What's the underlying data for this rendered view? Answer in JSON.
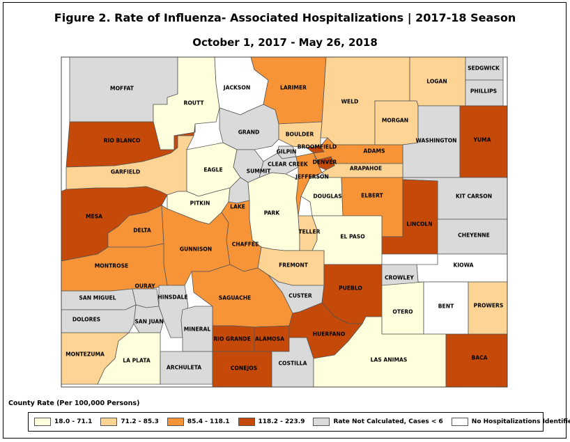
{
  "title": "Figure 2. Rate of Influenza- Associated Hospitalizations | 2017-18 Season",
  "subtitle": "October 1, 2017 - May 26, 2018",
  "colors": {
    "c1": "#ffffdd",
    "c2": "#fed495",
    "c3": "#f89438",
    "c4": "#c54a0a",
    "nc": "#dadada",
    "none": "#ffffff"
  },
  "legend": {
    "title": "County Rate (Per 100,000 Persons)",
    "items": [
      {
        "cls": "c1",
        "label": "18.0 - 71.1"
      },
      {
        "cls": "c2",
        "label": "71.2 - 85.3"
      },
      {
        "cls": "c3",
        "label": "85.4 - 118.1"
      },
      {
        "cls": "c4",
        "label": "118.2 - 223.9"
      },
      {
        "cls": "nc",
        "label": "Rate Not Calculated, Cases < 6"
      },
      {
        "cls": "none",
        "label": "No Hospitalizations Identified"
      }
    ]
  },
  "counties": [
    {
      "name": "MOFFAT",
      "cls": "nc"
    },
    {
      "name": "ROUTT",
      "cls": "c1"
    },
    {
      "name": "JACKSON",
      "cls": "none"
    },
    {
      "name": "LARIMER",
      "cls": "c3"
    },
    {
      "name": "WELD",
      "cls": "c2"
    },
    {
      "name": "LOGAN",
      "cls": "c2"
    },
    {
      "name": "SEDGWICK",
      "cls": "nc"
    },
    {
      "name": "PHILLIPS",
      "cls": "nc"
    },
    {
      "name": "RIO BLANCO",
      "cls": "c4"
    },
    {
      "name": "GRAND",
      "cls": "nc"
    },
    {
      "name": "BOULDER",
      "cls": "c2"
    },
    {
      "name": "MORGAN",
      "cls": "c2"
    },
    {
      "name": "WASHINGTON",
      "cls": "nc"
    },
    {
      "name": "YUMA",
      "cls": "c4"
    },
    {
      "name": "GARFIELD",
      "cls": "c2"
    },
    {
      "name": "EAGLE",
      "cls": "c1"
    },
    {
      "name": "SUMMIT",
      "cls": "nc"
    },
    {
      "name": "GILPIN",
      "cls": "nc"
    },
    {
      "name": "CLEAR CREEK",
      "cls": "nc"
    },
    {
      "name": "BROOMFIELD",
      "cls": "c4"
    },
    {
      "name": "DENVER",
      "cls": "c4"
    },
    {
      "name": "ADAMS",
      "cls": "c3"
    },
    {
      "name": "ARAPAHOE",
      "cls": "c2"
    },
    {
      "name": "JEFFERSON",
      "cls": "c3"
    },
    {
      "name": "MESA",
      "cls": "c4"
    },
    {
      "name": "PITKIN",
      "cls": "c1"
    },
    {
      "name": "LAKE",
      "cls": "nc"
    },
    {
      "name": "PARK",
      "cls": "c1"
    },
    {
      "name": "DOUGLAS",
      "cls": "c1"
    },
    {
      "name": "ELBERT",
      "cls": "c3"
    },
    {
      "name": "KIT CARSON",
      "cls": "nc"
    },
    {
      "name": "LINCOLN",
      "cls": "c4"
    },
    {
      "name": "CHEYENNE",
      "cls": "nc"
    },
    {
      "name": "DELTA",
      "cls": "c3"
    },
    {
      "name": "GUNNISON",
      "cls": "c3"
    },
    {
      "name": "CHAFFEE",
      "cls": "c3"
    },
    {
      "name": "TELLER",
      "cls": "c2"
    },
    {
      "name": "EL PASO",
      "cls": "c1"
    },
    {
      "name": "MONTROSE",
      "cls": "c3"
    },
    {
      "name": "FREMONT",
      "cls": "c2"
    },
    {
      "name": "KIOWA",
      "cls": "none"
    },
    {
      "name": "OURAY",
      "cls": "nc"
    },
    {
      "name": "SAN MIGUEL",
      "cls": "nc"
    },
    {
      "name": "HINSDALE",
      "cls": "nc"
    },
    {
      "name": "SAGUACHE",
      "cls": "c3"
    },
    {
      "name": "CUSTER",
      "cls": "nc"
    },
    {
      "name": "PUEBLO",
      "cls": "c4"
    },
    {
      "name": "CROWLEY",
      "cls": "nc"
    },
    {
      "name": "OTERO",
      "cls": "c1"
    },
    {
      "name": "BENT",
      "cls": "none"
    },
    {
      "name": "PROWERS",
      "cls": "c2"
    },
    {
      "name": "DOLORES",
      "cls": "nc"
    },
    {
      "name": "SAN JUAN",
      "cls": "nc"
    },
    {
      "name": "MINERAL",
      "cls": "nc"
    },
    {
      "name": "RIO GRANDE",
      "cls": "c4"
    },
    {
      "name": "ALAMOSA",
      "cls": "c4"
    },
    {
      "name": "HUERFANO",
      "cls": "c4"
    },
    {
      "name": "MONTEZUMA",
      "cls": "c2"
    },
    {
      "name": "LA PLATA",
      "cls": "c1"
    },
    {
      "name": "ARCHULETA",
      "cls": "nc"
    },
    {
      "name": "CONEJOS",
      "cls": "c4"
    },
    {
      "name": "COSTILLA",
      "cls": "nc"
    },
    {
      "name": "LAS ANIMAS",
      "cls": "c1"
    },
    {
      "name": "BACA",
      "cls": "c4"
    }
  ]
}
